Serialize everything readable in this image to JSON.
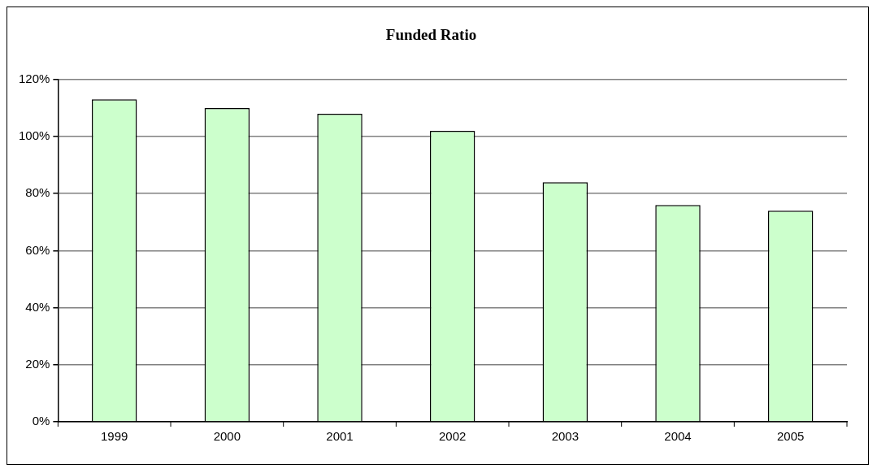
{
  "chart_data": {
    "type": "bar",
    "title": "Funded Ratio",
    "categories": [
      "1999",
      "2000",
      "2001",
      "2002",
      "2003",
      "2004",
      "2005"
    ],
    "values": [
      113,
      110,
      108,
      102,
      84,
      76,
      74
    ],
    "color": "#ccffcc",
    "ylim": [
      0,
      120
    ],
    "yticks": [
      {
        "value": 0,
        "label": "0%"
      },
      {
        "value": 20,
        "label": "20%"
      },
      {
        "value": 40,
        "label": "40%"
      },
      {
        "value": 60,
        "label": "60%"
      },
      {
        "value": 80,
        "label": "80%"
      },
      {
        "value": 100,
        "label": "100%"
      },
      {
        "value": 120,
        "label": "120%"
      }
    ],
    "grid": "y",
    "legend": false
  }
}
